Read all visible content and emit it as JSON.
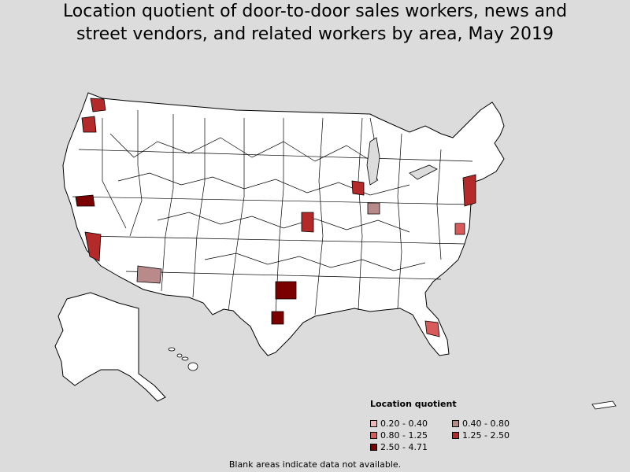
{
  "title_line1": "Location quotient of door-to-door sales workers, news and",
  "title_line2": "street vendors, and related workers by area, May 2019",
  "legend": {
    "title": "Location quotient",
    "items": [
      {
        "label": "0.20 - 0.40",
        "color": "#f2b6b6"
      },
      {
        "label": "0.40 - 0.80",
        "color": "#b88a8a"
      },
      {
        "label": "0.80 - 1.25",
        "color": "#d95a5a"
      },
      {
        "label": "1.25 - 2.50",
        "color": "#b42a2a"
      },
      {
        "label": "2.50 - 4.71",
        "color": "#7a0000"
      }
    ]
  },
  "note": "Blank areas indicate data not available.",
  "colors": {
    "background": "#dcdcdc",
    "land": "#ffffff",
    "border": "#000000"
  }
}
